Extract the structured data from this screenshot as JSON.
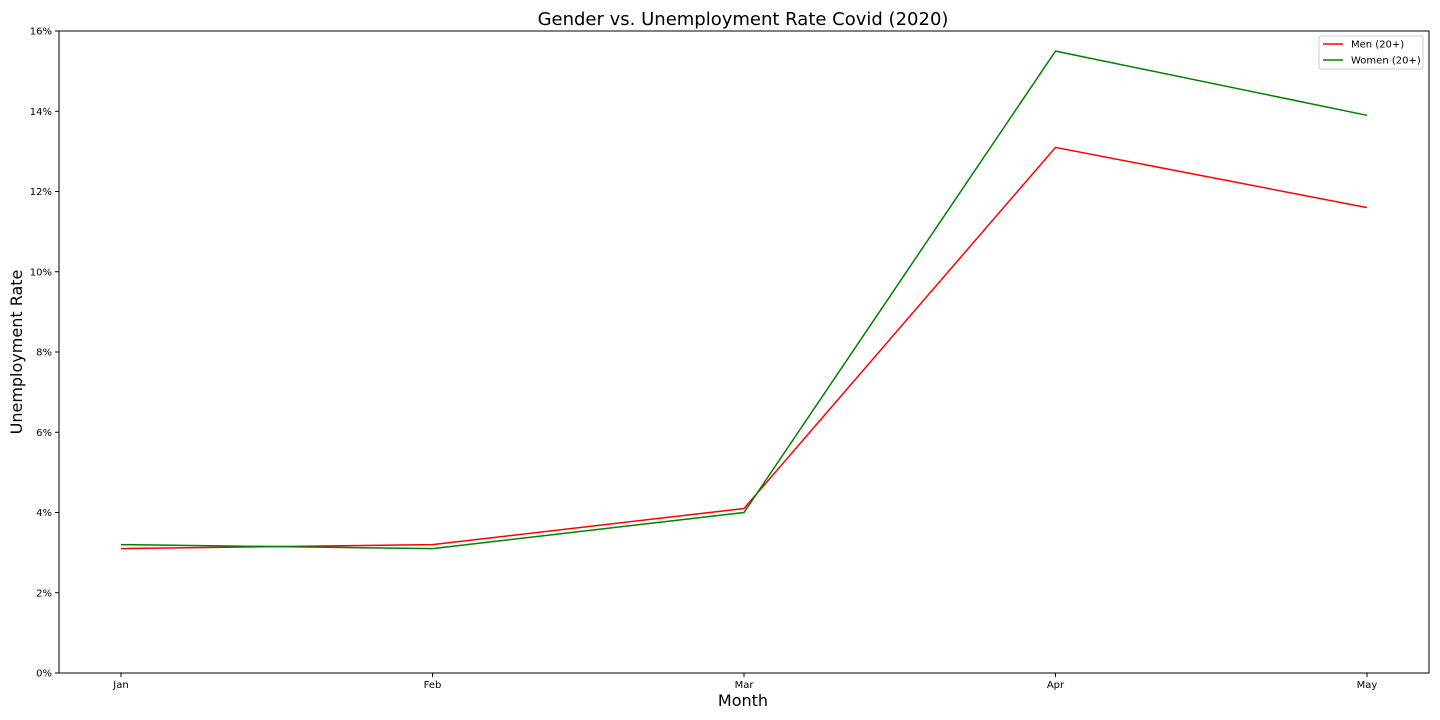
{
  "chart_data": {
    "type": "line",
    "title": "Gender vs. Unemployment Rate Covid (2020)",
    "xlabel": "Month",
    "ylabel": "Unemployment Rate",
    "categories": [
      "Jan",
      "Feb",
      "Mar",
      "Apr",
      "May"
    ],
    "ylim": [
      0,
      16
    ],
    "yticks": [
      0,
      2,
      4,
      6,
      8,
      10,
      12,
      14,
      16
    ],
    "ytick_suffix": "%",
    "grid": false,
    "legend_position": "top-right",
    "series": [
      {
        "name": "Men (20+)",
        "color": "#ff0000",
        "values": [
          3.1,
          3.2,
          4.1,
          13.1,
          11.6
        ]
      },
      {
        "name": "Women (20+)",
        "color": "#008000",
        "values": [
          3.2,
          3.1,
          4.0,
          15.5,
          13.9
        ]
      }
    ]
  }
}
